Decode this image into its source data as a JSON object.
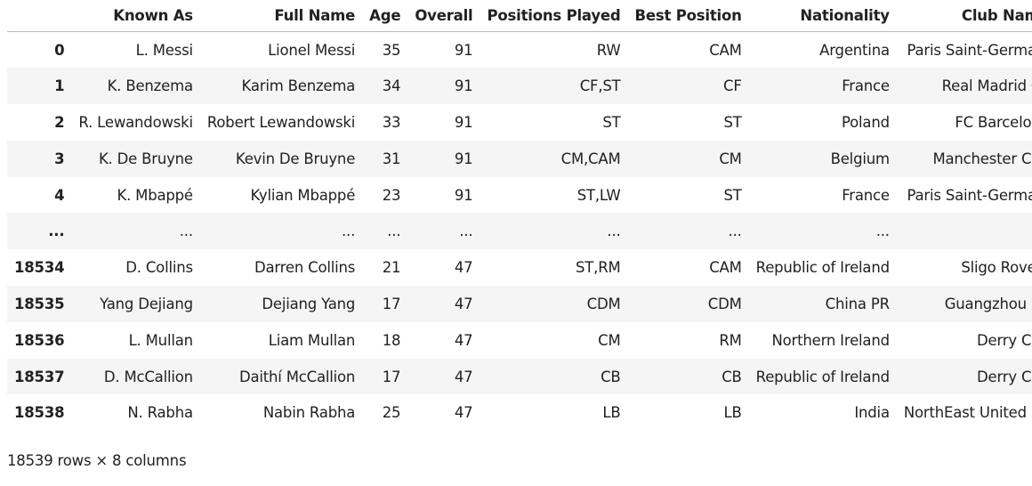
{
  "table": {
    "columns": [
      "",
      "Known As",
      "Full Name",
      "Age",
      "Overall",
      "Positions Played",
      "Best Position",
      "Nationality",
      "Club Name"
    ],
    "rows": [
      {
        "index": "0",
        "cells": [
          "L. Messi",
          "Lionel Messi",
          "35",
          "91",
          "RW",
          "CAM",
          "Argentina",
          "Paris Saint-Germain"
        ]
      },
      {
        "index": "1",
        "cells": [
          "K. Benzema",
          "Karim Benzema",
          "34",
          "91",
          "CF,ST",
          "CF",
          "France",
          "Real Madrid CF"
        ]
      },
      {
        "index": "2",
        "cells": [
          "R. Lewandowski",
          "Robert Lewandowski",
          "33",
          "91",
          "ST",
          "ST",
          "Poland",
          "FC Barcelona"
        ]
      },
      {
        "index": "3",
        "cells": [
          "K. De Bruyne",
          "Kevin De Bruyne",
          "31",
          "91",
          "CM,CAM",
          "CM",
          "Belgium",
          "Manchester City"
        ]
      },
      {
        "index": "4",
        "cells": [
          "K. Mbappé",
          "Kylian Mbappé",
          "23",
          "91",
          "ST,LW",
          "ST",
          "France",
          "Paris Saint-Germain"
        ]
      },
      {
        "index": "...",
        "cells": [
          "...",
          "...",
          "...",
          "...",
          "...",
          "...",
          "...",
          "..."
        ]
      },
      {
        "index": "18534",
        "cells": [
          "D. Collins",
          "Darren Collins",
          "21",
          "47",
          "ST,RM",
          "CAM",
          "Republic of Ireland",
          "Sligo Rovers"
        ]
      },
      {
        "index": "18535",
        "cells": [
          "Yang Dejiang",
          "Dejiang Yang",
          "17",
          "47",
          "CDM",
          "CDM",
          "China PR",
          "Guangzhou FC"
        ]
      },
      {
        "index": "18536",
        "cells": [
          "L. Mullan",
          "Liam Mullan",
          "18",
          "47",
          "CM",
          "RM",
          "Northern Ireland",
          "Derry City"
        ]
      },
      {
        "index": "18537",
        "cells": [
          "D. McCallion",
          "Daithí McCallion",
          "17",
          "47",
          "CB",
          "CB",
          "Republic of Ireland",
          "Derry City"
        ]
      },
      {
        "index": "18538",
        "cells": [
          "N. Rabha",
          "Nabin Rabha",
          "25",
          "47",
          "LB",
          "LB",
          "India",
          "NorthEast United FC"
        ]
      }
    ]
  },
  "footer": {
    "shape_text": "18539 rows × 8 columns"
  }
}
